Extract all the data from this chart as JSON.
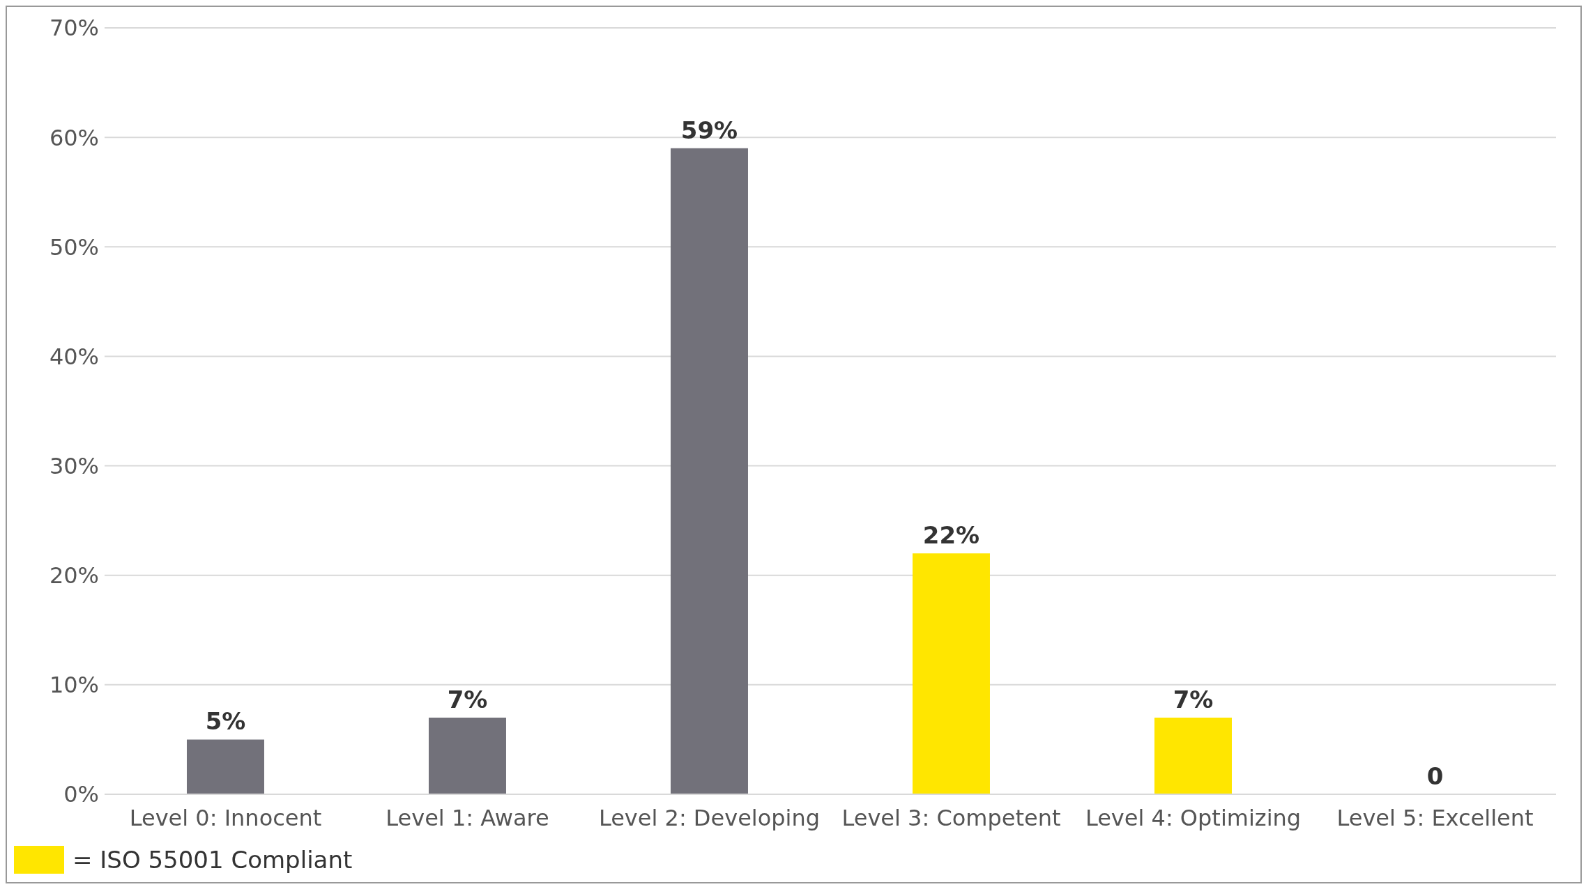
{
  "chart_data": {
    "type": "bar",
    "categories": [
      "Level 0: Innocent",
      "Level 1: Aware",
      "Level 2: Developing",
      "Level 3: Competent",
      "Level 4: Optimizing",
      "Level 5: Excellent"
    ],
    "values": [
      5,
      7,
      59,
      22,
      7,
      0
    ],
    "colors": [
      "#72717a",
      "#72717a",
      "#72717a",
      "#ffe600",
      "#ffe600",
      "#ffe600"
    ],
    "value_labels": [
      "5%",
      "7%",
      "59%",
      "22%",
      "7%",
      "0"
    ],
    "ylim": [
      0,
      70
    ],
    "yticks": [
      {
        "value": 0,
        "label": "0%"
      },
      {
        "value": 10,
        "label": "10%"
      },
      {
        "value": 20,
        "label": "20%"
      },
      {
        "value": 30,
        "label": "30%"
      },
      {
        "value": 40,
        "label": "40%"
      },
      {
        "value": 50,
        "label": "50%"
      },
      {
        "value": 60,
        "label": "60%"
      },
      {
        "value": 70,
        "label": "70%"
      }
    ],
    "grid": "y",
    "annotations": [
      "= ISO 55001 Compliant"
    ]
  }
}
